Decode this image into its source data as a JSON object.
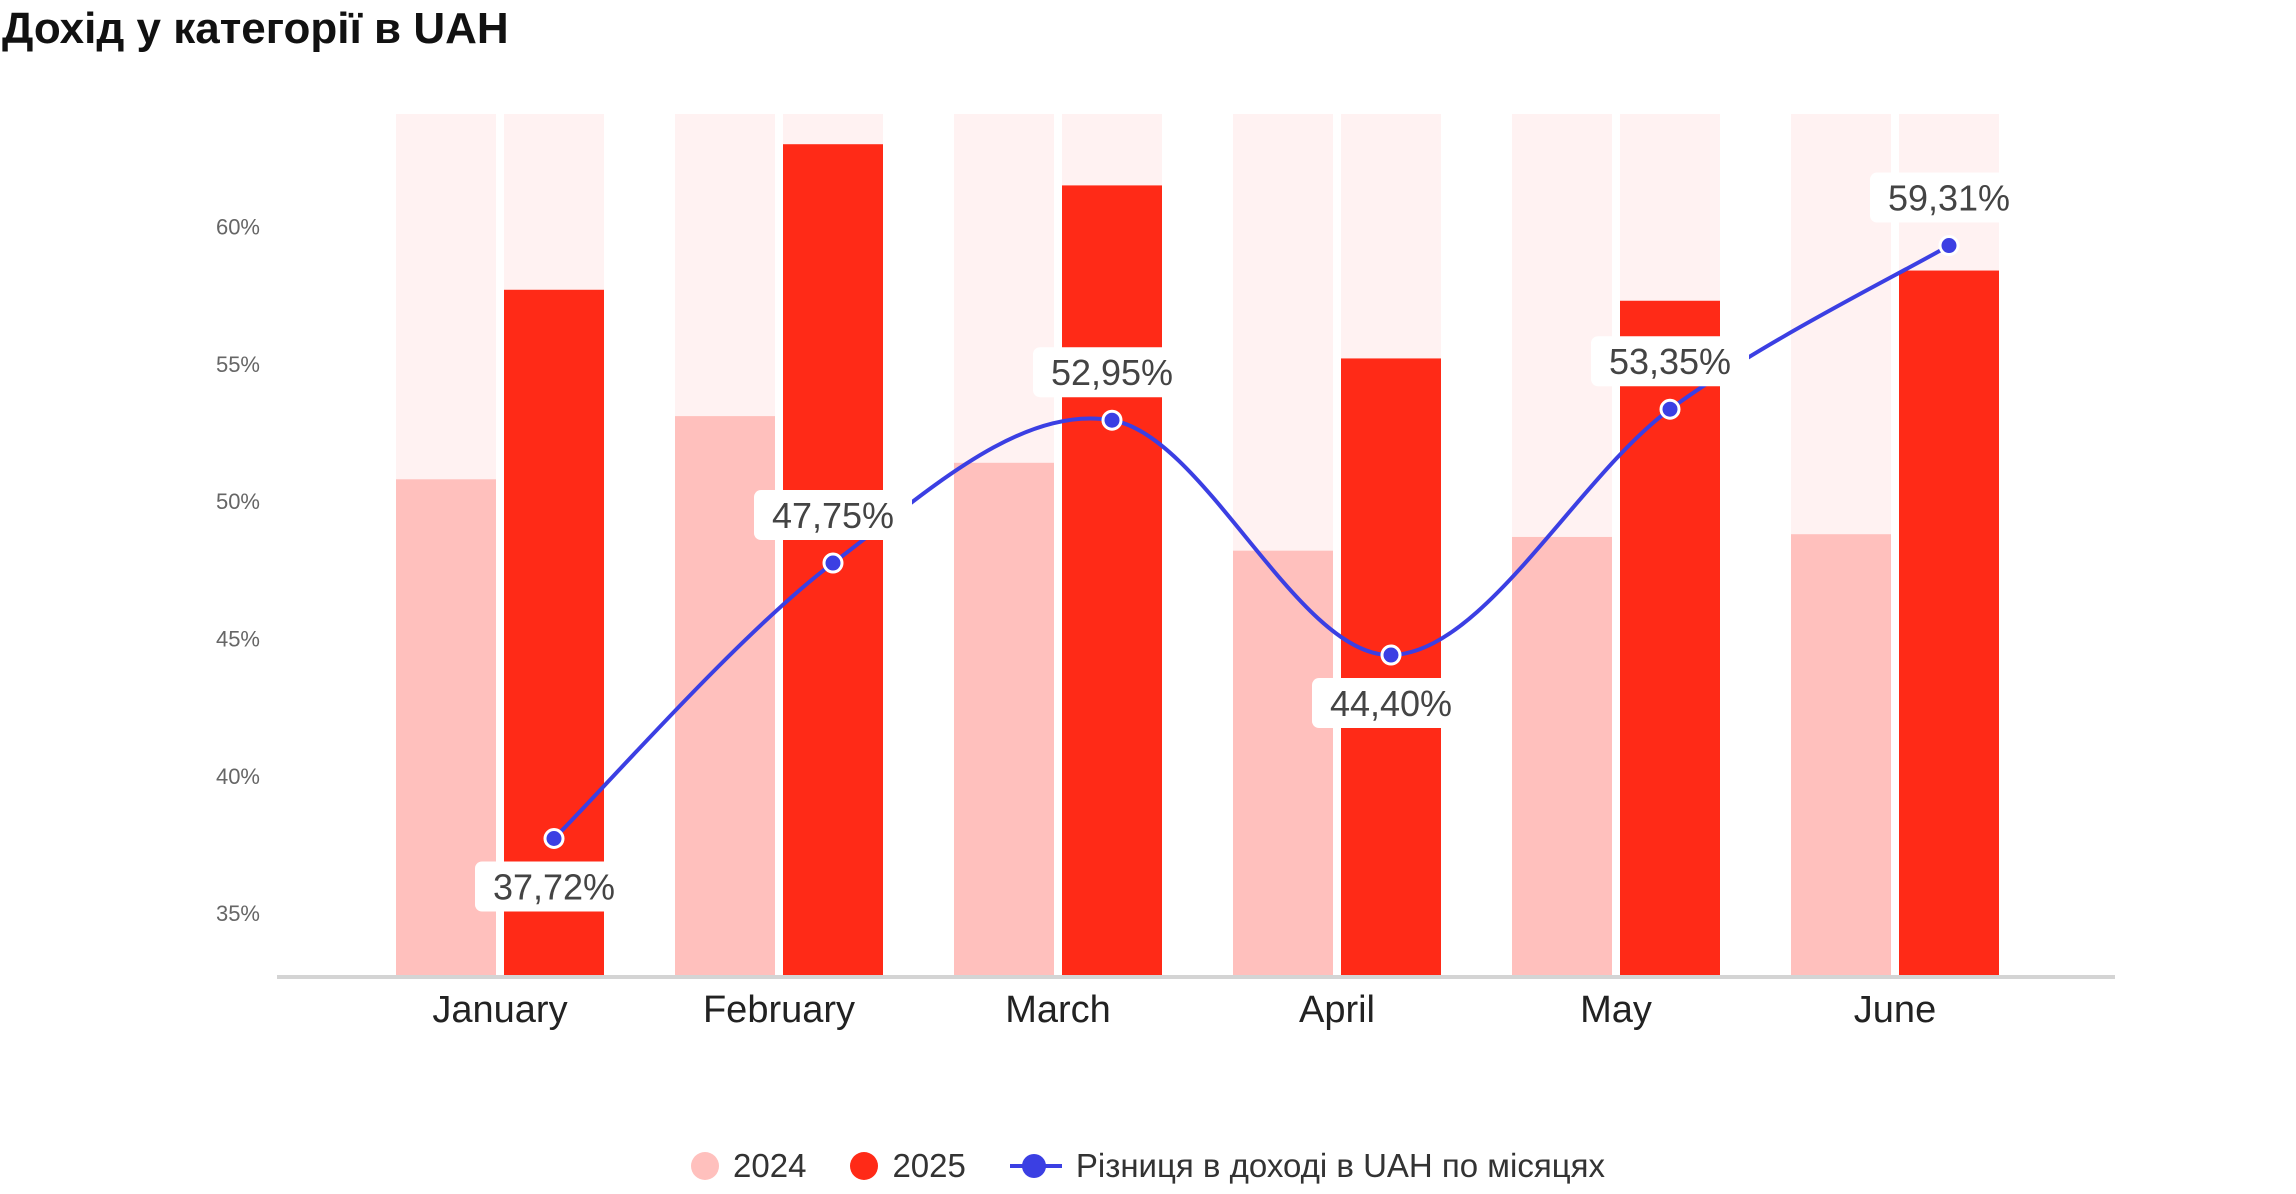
{
  "chart_data": {
    "type": "bar",
    "title": "Дохід у категорії в UAH",
    "categories": [
      "January",
      "February",
      "March",
      "April",
      "May",
      "June"
    ],
    "series": [
      {
        "name": "2024",
        "kind": "bar",
        "values": [
          50.8,
          53.1,
          51.4,
          48.2,
          48.7,
          48.8
        ]
      },
      {
        "name": "2025",
        "kind": "bar",
        "values": [
          57.7,
          63.0,
          61.5,
          55.2,
          57.3,
          58.4
        ]
      },
      {
        "name": "Різниця в доході в UAH по місяцях",
        "kind": "line",
        "values": [
          37.72,
          47.75,
          52.95,
          44.4,
          53.35,
          59.31
        ],
        "labels": [
          "37,72%",
          "47,75%",
          "52,95%",
          "44,40%",
          "53,35%",
          "59,31%"
        ]
      }
    ],
    "yticks": [
      "35%",
      "40%",
      "45%",
      "50%",
      "55%",
      "60%"
    ],
    "ytick_values": [
      35,
      40,
      45,
      50,
      55,
      60
    ],
    "ylim": [
      32.75,
      64.1
    ],
    "xlabel": "",
    "ylabel": "",
    "grid": false,
    "legend": "bottom-center",
    "colors": {
      "bar_2024": "#ffc0bd",
      "bar_2025": "#ff2a17",
      "bar_background": "#fff2f2",
      "line": "#3b3fe3",
      "axis": "#d4d4d4"
    }
  }
}
